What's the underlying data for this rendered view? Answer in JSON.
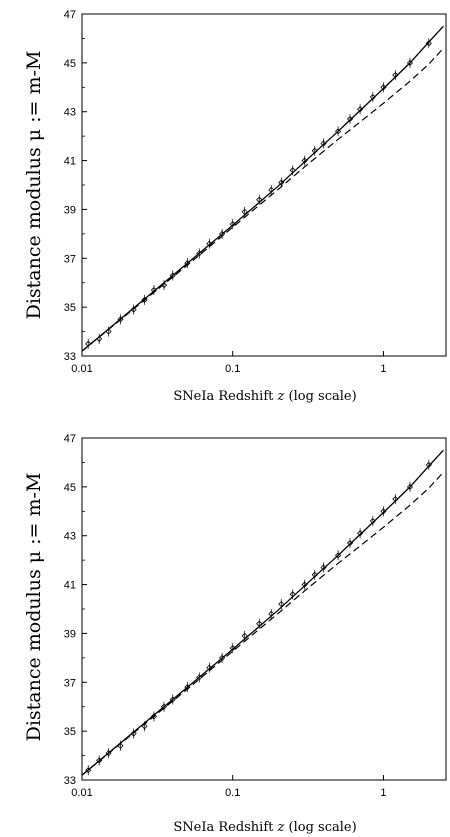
{
  "chart_data": [
    {
      "type": "scatter",
      "ylabel": "Distance modulus  μ := m-M",
      "xlabel_prefix": "SNeIa Redshift ",
      "xlabel_var": "z",
      "xlabel_suffix": " (log scale)",
      "xscale": "log",
      "xlim": [
        0.01,
        2.6
      ],
      "ylim": [
        33,
        47
      ],
      "yticks": [
        33,
        35,
        37,
        39,
        41,
        43,
        45,
        47
      ],
      "xticks": [
        0.01,
        0.1,
        1
      ],
      "ytick_labels": [
        "33",
        "35",
        "37",
        "39",
        "41",
        "43",
        "45",
        "47"
      ],
      "xtick_labels": [
        "0.01",
        "0.1",
        "1"
      ],
      "grid": false,
      "series": [
        {
          "style": "solid",
          "points": [
            [
              0.01,
              33.2
            ],
            [
              0.02,
              34.75
            ],
            [
              0.05,
              36.8
            ],
            [
              0.1,
              38.35
            ],
            [
              0.2,
              39.95
            ],
            [
              0.3,
              40.95
            ],
            [
              0.5,
              42.2
            ],
            [
              0.7,
              43.05
            ],
            [
              1.0,
              43.95
            ],
            [
              1.5,
              45.0
            ],
            [
              2.0,
              45.85
            ],
            [
              2.5,
              46.5
            ]
          ]
        },
        {
          "style": "dashed",
          "points": [
            [
              0.01,
              33.2
            ],
            [
              0.02,
              34.72
            ],
            [
              0.05,
              36.72
            ],
            [
              0.1,
              38.27
            ],
            [
              0.2,
              39.82
            ],
            [
              0.3,
              40.74
            ],
            [
              0.5,
              41.87
            ],
            [
              0.7,
              42.58
            ],
            [
              1.0,
              43.35
            ],
            [
              1.5,
              44.25
            ],
            [
              2.0,
              44.95
            ],
            [
              2.5,
              45.6
            ]
          ]
        },
        {
          "style": "markers",
          "points": [
            [
              0.011,
              33.5
            ],
            [
              0.013,
              33.7
            ],
            [
              0.015,
              34.0
            ],
            [
              0.018,
              34.5
            ],
            [
              0.022,
              34.9
            ],
            [
              0.026,
              35.3
            ],
            [
              0.03,
              35.7
            ],
            [
              0.035,
              35.9
            ],
            [
              0.04,
              36.3
            ],
            [
              0.05,
              36.8
            ],
            [
              0.06,
              37.2
            ],
            [
              0.07,
              37.6
            ],
            [
              0.085,
              38.0
            ],
            [
              0.1,
              38.4
            ],
            [
              0.12,
              38.9
            ],
            [
              0.15,
              39.4
            ],
            [
              0.18,
              39.8
            ],
            [
              0.21,
              40.1
            ],
            [
              0.25,
              40.6
            ],
            [
              0.3,
              41.0
            ],
            [
              0.35,
              41.4
            ],
            [
              0.4,
              41.7
            ],
            [
              0.5,
              42.2
            ],
            [
              0.6,
              42.7
            ],
            [
              0.7,
              43.1
            ],
            [
              0.85,
              43.6
            ],
            [
              1.0,
              44.0
            ],
            [
              1.2,
              44.5
            ],
            [
              1.5,
              45.0
            ],
            [
              2.0,
              45.8
            ]
          ]
        }
      ]
    },
    {
      "type": "scatter",
      "ylabel": "Distance modulus  μ := m-M",
      "xlabel_prefix": "SNeIa Redshift ",
      "xlabel_var": "z",
      "xlabel_suffix": " (log scale)",
      "xscale": "log",
      "xlim": [
        0.01,
        2.6
      ],
      "ylim": [
        33,
        47
      ],
      "yticks": [
        33,
        35,
        37,
        39,
        41,
        43,
        45,
        47
      ],
      "xticks": [
        0.01,
        0.1,
        1
      ],
      "ytick_labels": [
        "33",
        "35",
        "37",
        "39",
        "41",
        "43",
        "45",
        "47"
      ],
      "xtick_labels": [
        "0.01",
        "0.1",
        "1"
      ],
      "grid": false,
      "series": [
        {
          "style": "solid",
          "points": [
            [
              0.01,
              33.2
            ],
            [
              0.02,
              34.75
            ],
            [
              0.05,
              36.8
            ],
            [
              0.1,
              38.35
            ],
            [
              0.2,
              39.95
            ],
            [
              0.3,
              40.95
            ],
            [
              0.5,
              42.2
            ],
            [
              0.7,
              43.05
            ],
            [
              1.0,
              43.95
            ],
            [
              1.5,
              45.0
            ],
            [
              2.0,
              45.85
            ],
            [
              2.5,
              46.5
            ]
          ]
        },
        {
          "style": "dashed",
          "points": [
            [
              0.01,
              33.2
            ],
            [
              0.02,
              34.72
            ],
            [
              0.05,
              36.72
            ],
            [
              0.1,
              38.27
            ],
            [
              0.2,
              39.82
            ],
            [
              0.3,
              40.74
            ],
            [
              0.5,
              41.87
            ],
            [
              0.7,
              42.58
            ],
            [
              1.0,
              43.35
            ],
            [
              1.5,
              44.25
            ],
            [
              2.0,
              44.95
            ],
            [
              2.5,
              45.6
            ]
          ]
        },
        {
          "style": "markers",
          "points": [
            [
              0.011,
              33.4
            ],
            [
              0.013,
              33.8
            ],
            [
              0.015,
              34.1
            ],
            [
              0.018,
              34.4
            ],
            [
              0.022,
              34.9
            ],
            [
              0.026,
              35.2
            ],
            [
              0.03,
              35.6
            ],
            [
              0.035,
              36.0
            ],
            [
              0.04,
              36.3
            ],
            [
              0.05,
              36.8
            ],
            [
              0.06,
              37.2
            ],
            [
              0.07,
              37.6
            ],
            [
              0.085,
              38.0
            ],
            [
              0.1,
              38.4
            ],
            [
              0.12,
              38.9
            ],
            [
              0.15,
              39.4
            ],
            [
              0.18,
              39.8
            ],
            [
              0.21,
              40.2
            ],
            [
              0.25,
              40.6
            ],
            [
              0.3,
              41.0
            ],
            [
              0.35,
              41.4
            ],
            [
              0.4,
              41.7
            ],
            [
              0.5,
              42.2
            ],
            [
              0.6,
              42.7
            ],
            [
              0.7,
              43.1
            ],
            [
              0.85,
              43.6
            ],
            [
              1.0,
              44.0
            ],
            [
              1.2,
              44.5
            ],
            [
              1.5,
              45.0
            ],
            [
              2.0,
              45.9
            ]
          ]
        }
      ]
    }
  ]
}
